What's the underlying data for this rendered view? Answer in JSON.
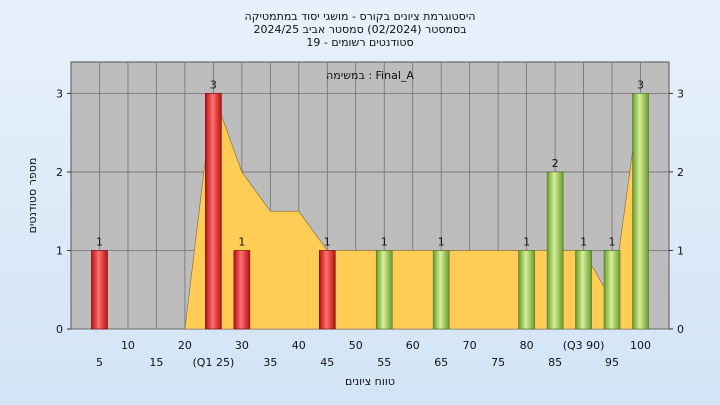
{
  "titles": {
    "line1": "היסטוגרמת ציונים בקורס - מושגי יסוד במתמטיקה",
    "line2": "בסמסטר  (02/2024)  סמסטר אביב 2024/25",
    "line3": "סטודנטים רשומים - 19"
  },
  "chart_data": {
    "type": "bar",
    "title": "",
    "legend_label": "במשימה : Final_A",
    "xlabel": "טווח ציונים",
    "ylabel": "מספר סטודנטים",
    "ylim": [
      0,
      3.4
    ],
    "xlim": [
      0,
      105
    ],
    "yticks": [
      0,
      1,
      2,
      3
    ],
    "xticks": [
      {
        "x": 5,
        "label": "5",
        "row": 2
      },
      {
        "x": 10,
        "label": "10",
        "row": 1
      },
      {
        "x": 15,
        "label": "15",
        "row": 2
      },
      {
        "x": 20,
        "label": "20",
        "row": 1
      },
      {
        "x": 25,
        "label": "(Q1 25)",
        "row": 2
      },
      {
        "x": 30,
        "label": "30",
        "row": 1
      },
      {
        "x": 35,
        "label": "35",
        "row": 2
      },
      {
        "x": 40,
        "label": "40",
        "row": 1
      },
      {
        "x": 45,
        "label": "45",
        "row": 2
      },
      {
        "x": 50,
        "label": "50",
        "row": 1
      },
      {
        "x": 55,
        "label": "55",
        "row": 2
      },
      {
        "x": 60,
        "label": "60",
        "row": 1
      },
      {
        "x": 65,
        "label": "65",
        "row": 2
      },
      {
        "x": 70,
        "label": "70",
        "row": 1
      },
      {
        "x": 75,
        "label": "75",
        "row": 2
      },
      {
        "x": 80,
        "label": "80",
        "row": 1
      },
      {
        "x": 85,
        "label": "85",
        "row": 2
      },
      {
        "x": 90,
        "label": "(Q3 90)",
        "row": 1
      },
      {
        "x": 95,
        "label": "95",
        "row": 2
      },
      {
        "x": 100,
        "label": "100",
        "row": 1
      }
    ],
    "bars": [
      {
        "x": 5,
        "value": 1,
        "group": "low"
      },
      {
        "x": 25,
        "value": 3,
        "group": "low"
      },
      {
        "x": 30,
        "value": 1,
        "group": "low"
      },
      {
        "x": 45,
        "value": 1,
        "group": "low"
      },
      {
        "x": 55,
        "value": 1,
        "group": "high"
      },
      {
        "x": 65,
        "value": 1,
        "group": "high"
      },
      {
        "x": 80,
        "value": 1,
        "group": "high"
      },
      {
        "x": 85,
        "value": 2,
        "group": "high"
      },
      {
        "x": 90,
        "value": 1,
        "group": "high"
      },
      {
        "x": 95,
        "value": 1,
        "group": "high"
      },
      {
        "x": 100,
        "value": 3,
        "group": "high"
      }
    ],
    "area": [
      [
        20,
        0
      ],
      [
        25,
        3
      ],
      [
        30,
        2
      ],
      [
        35,
        1.5
      ],
      [
        40,
        1.5
      ],
      [
        45,
        1
      ],
      [
        55,
        1
      ],
      [
        65,
        1
      ],
      [
        80,
        1
      ],
      [
        85,
        1
      ],
      [
        90,
        1
      ],
      [
        95,
        0.35
      ],
      [
        100,
        3
      ]
    ],
    "colors": {
      "low": "#e02020",
      "high": "#8fc24a",
      "area": "#ffcc55",
      "plot_bg": "#bdbdbd",
      "grid": "#707070"
    }
  }
}
